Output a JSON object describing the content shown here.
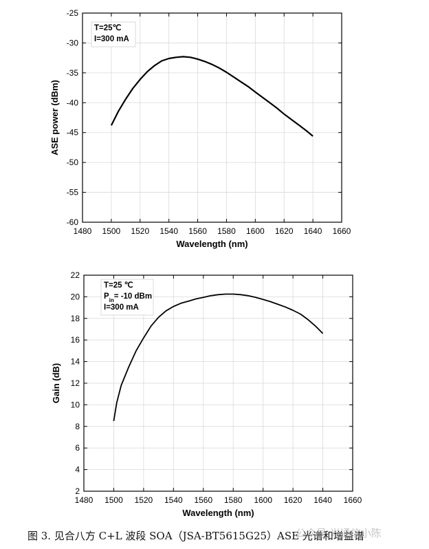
{
  "chart_data": [
    {
      "type": "line",
      "title": "",
      "xlabel": "Wavelength (nm)",
      "ylabel": "ASE power (dBm)",
      "xlim": [
        1480,
        1660
      ],
      "ylim": [
        -60,
        -25
      ],
      "xticks": [
        1480,
        1500,
        1520,
        1540,
        1560,
        1580,
        1600,
        1620,
        1640,
        1660
      ],
      "yticks": [
        -60,
        -55,
        -50,
        -45,
        -40,
        -35,
        -30,
        -25
      ],
      "annotations": [
        "T=25℃",
        "I=300 mA"
      ],
      "grid": true,
      "series": [
        {
          "x": [
            1500,
            1505,
            1510,
            1515,
            1520,
            1525,
            1530,
            1535,
            1540,
            1545,
            1550,
            1555,
            1560,
            1565,
            1570,
            1575,
            1580,
            1585,
            1590,
            1595,
            1600,
            1605,
            1610,
            1615,
            1620,
            1625,
            1630,
            1635,
            1640
          ],
          "y": [
            -43.8,
            -41.4,
            -39.4,
            -37.6,
            -36.1,
            -34.8,
            -33.8,
            -33.0,
            -32.6,
            -32.4,
            -32.3,
            -32.4,
            -32.7,
            -33.1,
            -33.6,
            -34.2,
            -34.9,
            -35.7,
            -36.5,
            -37.3,
            -38.2,
            -39.1,
            -40.0,
            -40.9,
            -41.9,
            -42.8,
            -43.7,
            -44.6,
            -45.6
          ]
        }
      ]
    },
    {
      "type": "line",
      "title": "",
      "xlabel": "Wavelength (nm)",
      "ylabel": "Gain (dB)",
      "xlim": [
        1480,
        1660
      ],
      "ylim": [
        2,
        22
      ],
      "xticks": [
        1480,
        1500,
        1520,
        1540,
        1560,
        1580,
        1600,
        1620,
        1640,
        1660
      ],
      "yticks": [
        2,
        4,
        6,
        8,
        10,
        12,
        14,
        16,
        18,
        20,
        22
      ],
      "annotations": [
        "T=25 ℃",
        "P",
        "in",
        "= -10 dBm",
        "I=300 mA"
      ],
      "grid": true,
      "series": [
        {
          "x": [
            1500,
            1502,
            1505,
            1510,
            1515,
            1520,
            1525,
            1530,
            1535,
            1540,
            1545,
            1550,
            1555,
            1560,
            1565,
            1570,
            1575,
            1580,
            1585,
            1590,
            1595,
            1600,
            1605,
            1610,
            1615,
            1620,
            1625,
            1630,
            1635,
            1640
          ],
          "y": [
            8.5,
            10.2,
            11.8,
            13.5,
            15.0,
            16.2,
            17.3,
            18.1,
            18.7,
            19.1,
            19.4,
            19.6,
            19.8,
            19.95,
            20.1,
            20.2,
            20.25,
            20.25,
            20.2,
            20.1,
            19.95,
            19.75,
            19.55,
            19.3,
            19.05,
            18.75,
            18.4,
            17.9,
            17.3,
            16.6
          ]
        }
      ]
    }
  ],
  "caption": "图 3. 见合八方 C+L 波段 SOA（JSA-BT5615G25）ASE 光谱和增益谱",
  "watermark": "公众号·光通信小陈"
}
